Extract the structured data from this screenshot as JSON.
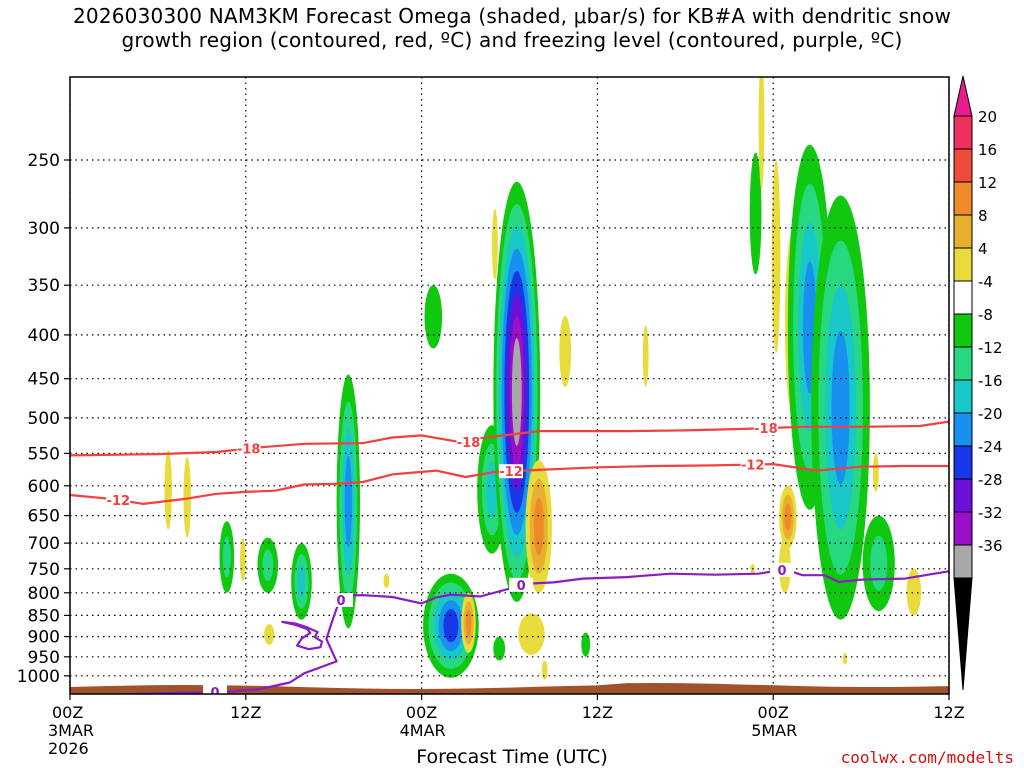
{
  "title": {
    "line1": "2026030300 NAM3KM Forecast Omega (shaded, μbar/s) for KB#A with dendritic snow",
    "line2": "growth region (contoured, red, ºC) and freezing level (contoured, purple, ºC)"
  },
  "xlabel": "Forecast Time (UTC)",
  "credit": "coolwx.com/modelts",
  "colors": {
    "dgz": "#f04040",
    "freezing": "#8a1cc0",
    "terrain": "#a0522d"
  },
  "chart_data": {
    "type": "heatmap",
    "title": "2026030300 NAM3KM Forecast Omega (shaded, μbar/s) for KB#A with dendritic snow growth region (contoured, red, ºC) and freezing level (contoured, purple, ºC)",
    "xlabel": "Forecast Time (UTC)",
    "ylabel": "",
    "x_range_hours": [
      0,
      60
    ],
    "y_scale": "log",
    "y_range_hpa": [
      1050,
      200
    ],
    "y_reversed": true,
    "grid": true,
    "y_ticks": [
      250,
      300,
      350,
      400,
      450,
      500,
      550,
      600,
      650,
      700,
      750,
      800,
      850,
      900,
      950,
      1000
    ],
    "x_ticks": [
      {
        "hour": 0,
        "label": "00Z",
        "sub1": "3MAR",
        "sub2": "2026"
      },
      {
        "hour": 12,
        "label": "12Z",
        "sub1": "",
        "sub2": ""
      },
      {
        "hour": 24,
        "label": "00Z",
        "sub1": "4MAR",
        "sub2": ""
      },
      {
        "hour": 36,
        "label": "12Z",
        "sub1": "",
        "sub2": ""
      },
      {
        "hour": 48,
        "label": "00Z",
        "sub1": "5MAR",
        "sub2": ""
      },
      {
        "hour": 60,
        "label": "12Z",
        "sub1": "",
        "sub2": ""
      }
    ],
    "colorbar": {
      "labels": [
        "20",
        "16",
        "12",
        "8",
        "4",
        "-4",
        "-8",
        "-12",
        "-16",
        "-20",
        "-24",
        "-28",
        "-32",
        "-36"
      ],
      "colors": [
        "#f03060",
        "#f04a3c",
        "#ee8a2a",
        "#e8b030",
        "#e8dc3c",
        "#ffffff",
        "#10c810",
        "#28d880",
        "#18c8c8",
        "#1890f0",
        "#1838e8",
        "#6a10d8",
        "#9a10c8",
        "#a8a8a8"
      ]
    },
    "dgz_minus18": {
      "label": "-18",
      "label_positions_hour": [
        12.2,
        27.2,
        47.5
      ],
      "points": [
        [
          0,
          553
        ],
        [
          6,
          551
        ],
        [
          10,
          548
        ],
        [
          13,
          541
        ],
        [
          16,
          536
        ],
        [
          20,
          535
        ],
        [
          22,
          527
        ],
        [
          24,
          524
        ],
        [
          27,
          535
        ],
        [
          28,
          528
        ],
        [
          32,
          518
        ],
        [
          38,
          518
        ],
        [
          42,
          517
        ],
        [
          46,
          515
        ],
        [
          50,
          512
        ],
        [
          54,
          512
        ],
        [
          58,
          511
        ],
        [
          60,
          505
        ]
      ]
    },
    "dgz_minus12": {
      "label": "-12",
      "label_positions_hour": [
        3.3,
        30.1,
        46.6
      ],
      "points": [
        [
          0,
          615
        ],
        [
          3,
          622
        ],
        [
          5,
          630
        ],
        [
          8,
          621
        ],
        [
          10,
          613
        ],
        [
          12,
          610
        ],
        [
          14,
          608
        ],
        [
          16,
          598
        ],
        [
          18,
          597
        ],
        [
          20,
          594
        ],
        [
          22,
          582
        ],
        [
          25,
          576
        ],
        [
          27,
          586
        ],
        [
          29,
          578
        ],
        [
          32,
          575
        ],
        [
          36,
          571
        ],
        [
          40,
          569
        ],
        [
          44,
          568
        ],
        [
          48,
          566
        ],
        [
          51,
          576
        ],
        [
          54,
          570
        ],
        [
          57,
          569
        ],
        [
          60,
          569
        ]
      ]
    },
    "freezing_0c": {
      "label": "0",
      "label_positions_hour": [
        9.9,
        18.5,
        30.8,
        48.6
      ],
      "points": [
        [
          3.4,
          1051
        ],
        [
          6,
          1048
        ],
        [
          9,
          1045
        ],
        [
          11,
          1043
        ],
        [
          13,
          1036
        ],
        [
          15,
          1018
        ],
        [
          16,
          993
        ],
        [
          18.2,
          962
        ],
        [
          17.5,
          906
        ],
        [
          17.8,
          873
        ],
        [
          18.3,
          825
        ],
        [
          18.7,
          806
        ],
        [
          20,
          805
        ],
        [
          22,
          809
        ],
        [
          24,
          823
        ],
        [
          25,
          810
        ],
        [
          26,
          804
        ],
        [
          28,
          808
        ],
        [
          30,
          791
        ],
        [
          31,
          781
        ],
        [
          33,
          778
        ],
        [
          35,
          770
        ],
        [
          38,
          767
        ],
        [
          41,
          760
        ],
        [
          44,
          762
        ],
        [
          47,
          760
        ],
        [
          48.8,
          751
        ],
        [
          50,
          763
        ],
        [
          51.5,
          763
        ],
        [
          52.5,
          777
        ],
        [
          54,
          772
        ],
        [
          57,
          770
        ],
        [
          59,
          760
        ],
        [
          60,
          755
        ]
      ]
    },
    "freezing_0c_loop": [
      [
        14.5,
        865
      ],
      [
        15.3,
        871
      ],
      [
        16.2,
        882
      ],
      [
        16.4,
        891
      ],
      [
        15.8,
        905
      ],
      [
        15.5,
        922
      ],
      [
        16.3,
        931
      ],
      [
        17.1,
        926
      ],
      [
        17.2,
        912
      ],
      [
        16.7,
        901
      ],
      [
        16.9,
        889
      ],
      [
        16.2,
        878
      ],
      [
        15.4,
        869
      ]
    ],
    "omega_cells": [
      {
        "hour": 6.7,
        "p_top": 545,
        "p_bot": 675,
        "halfwidth_h": 0.25,
        "value": 5
      },
      {
        "hour": 8.0,
        "p_top": 555,
        "p_bot": 690,
        "halfwidth_h": 0.25,
        "value": 4
      },
      {
        "hour": 10.7,
        "p_top": 660,
        "p_bot": 800,
        "halfwidth_h": 0.5,
        "value": -9
      },
      {
        "hour": 11.8,
        "p_top": 690,
        "p_bot": 775,
        "halfwidth_h": 0.2,
        "value": 5
      },
      {
        "hour": 13.5,
        "p_top": 690,
        "p_bot": 800,
        "halfwidth_h": 0.7,
        "value": -10
      },
      {
        "hour": 13.6,
        "p_top": 870,
        "p_bot": 920,
        "halfwidth_h": 0.35,
        "value": 5
      },
      {
        "hour": 15.8,
        "p_top": 700,
        "p_bot": 860,
        "halfwidth_h": 0.7,
        "value": -12
      },
      {
        "hour": 19.0,
        "p_top": 445,
        "p_bot": 880,
        "halfwidth_h": 0.8,
        "value": -16
      },
      {
        "hour": 21.6,
        "p_top": 760,
        "p_bot": 790,
        "halfwidth_h": 0.2,
        "value": 5
      },
      {
        "hour": 24.8,
        "p_top": 350,
        "p_bot": 415,
        "halfwidth_h": 0.6,
        "value": -6
      },
      {
        "hour": 26.0,
        "p_top": 760,
        "p_bot": 1005,
        "halfwidth_h": 1.9,
        "value": -23
      },
      {
        "hour": 27.2,
        "p_top": 800,
        "p_bot": 940,
        "halfwidth_h": 0.5,
        "value": 14
      },
      {
        "hour": 28.8,
        "p_top": 510,
        "p_bot": 720,
        "halfwidth_h": 1.0,
        "value": -12
      },
      {
        "hour": 29.0,
        "p_top": 285,
        "p_bot": 345,
        "halfwidth_h": 0.2,
        "value": 5
      },
      {
        "hour": 30.5,
        "p_top": 265,
        "p_bot": 820,
        "halfwidth_h": 1.6,
        "value": -34
      },
      {
        "hour": 32.0,
        "p_top": 560,
        "p_bot": 800,
        "halfwidth_h": 0.9,
        "value": 14
      },
      {
        "hour": 31.5,
        "p_top": 845,
        "p_bot": 945,
        "halfwidth_h": 0.9,
        "value": 6
      },
      {
        "hour": 29.3,
        "p_top": 900,
        "p_bot": 960,
        "halfwidth_h": 0.4,
        "value": -6
      },
      {
        "hour": 32.4,
        "p_top": 960,
        "p_bot": 1010,
        "halfwidth_h": 0.2,
        "value": 5
      },
      {
        "hour": 33.8,
        "p_top": 380,
        "p_bot": 460,
        "halfwidth_h": 0.4,
        "value": 5
      },
      {
        "hour": 35.2,
        "p_top": 890,
        "p_bot": 950,
        "halfwidth_h": 0.3,
        "value": -6
      },
      {
        "hour": 39.3,
        "p_top": 390,
        "p_bot": 460,
        "halfwidth_h": 0.2,
        "value": 5
      },
      {
        "hour": 46.8,
        "p_top": 245,
        "p_bot": 340,
        "halfwidth_h": 0.4,
        "value": -6
      },
      {
        "hour": 46.6,
        "p_top": 740,
        "p_bot": 760,
        "halfwidth_h": 0.15,
        "value": 5
      },
      {
        "hour": 47.2,
        "p_top": 190,
        "p_bot": 270,
        "halfwidth_h": 0.2,
        "value": 5
      },
      {
        "hour": 48.2,
        "p_top": 250,
        "p_bot": 420,
        "halfwidth_h": 0.3,
        "value": 5
      },
      {
        "hour": 48.8,
        "p_top": 690,
        "p_bot": 800,
        "halfwidth_h": 0.4,
        "value": 4
      },
      {
        "hour": 49.4,
        "p_top": 300,
        "p_bot": 500,
        "halfwidth_h": 0.6,
        "value": 5
      },
      {
        "hour": 49.0,
        "p_top": 600,
        "p_bot": 710,
        "halfwidth_h": 0.6,
        "value": 15
      },
      {
        "hour": 50.5,
        "p_top": 240,
        "p_bot": 640,
        "halfwidth_h": 1.5,
        "value": -18
      },
      {
        "hour": 52.6,
        "p_top": 275,
        "p_bot": 860,
        "halfwidth_h": 2.0,
        "value": -18
      },
      {
        "hour": 55.2,
        "p_top": 650,
        "p_bot": 840,
        "halfwidth_h": 1.1,
        "value": -9
      },
      {
        "hour": 52.9,
        "p_top": 940,
        "p_bot": 970,
        "halfwidth_h": 0.15,
        "value": 5
      },
      {
        "hour": 55.0,
        "p_top": 550,
        "p_bot": 610,
        "halfwidth_h": 0.2,
        "value": 5
      },
      {
        "hour": 57.6,
        "p_top": 750,
        "p_bot": 850,
        "halfwidth_h": 0.5,
        "value": 5
      }
    ]
  }
}
